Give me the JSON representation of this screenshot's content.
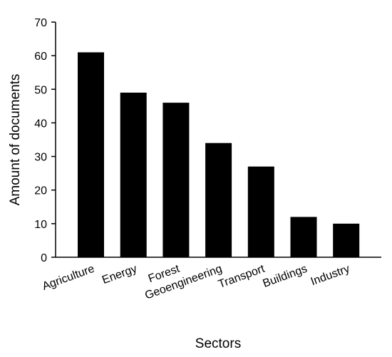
{
  "chart_data": {
    "type": "bar",
    "title": "",
    "xlabel": "Sectors",
    "ylabel": "Amount of documents",
    "categories": [
      "Agriculture",
      "Energy",
      "Forest",
      "Geoengineering",
      "Transport",
      "Buildings",
      "Industry"
    ],
    "values": [
      61,
      49,
      46,
      34,
      27,
      12,
      10
    ],
    "ylim": [
      0,
      70
    ],
    "yticks": [
      0,
      10,
      20,
      30,
      40,
      50,
      60,
      70
    ],
    "grid": false,
    "legend": "none",
    "colors": {
      "bar": "#000000",
      "axis": "#000000",
      "background": "#ffffff"
    }
  }
}
